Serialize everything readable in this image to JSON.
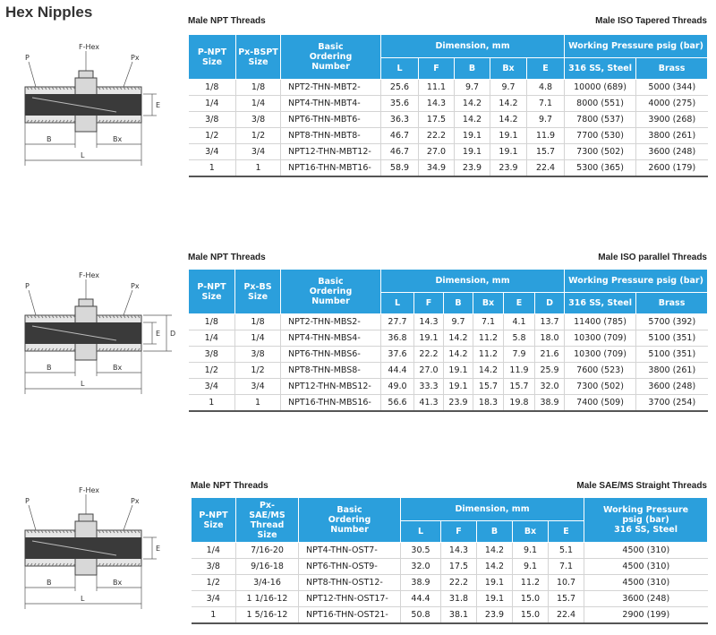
{
  "title": "Hex Nipples",
  "sections": [
    {
      "diagram_labels": [
        "P",
        "F-Hex",
        "Px",
        "E",
        "B",
        "Bx",
        "L"
      ],
      "caption_left": "Male NPT Threads",
      "caption_right": "Male ISO Tapered Threads",
      "header": {
        "col1": "P-NPT Size",
        "col2": "Px-BSPT Size",
        "col3": "Basic Ordering Number",
        "dimension": "Dimension, mm",
        "dims": [
          "L",
          "F",
          "B",
          "Bx",
          "E"
        ],
        "pressure": "Working Pressure psig (bar)",
        "press_cols": [
          "316 SS, Steel",
          "Brass"
        ]
      },
      "rows": [
        [
          "1/8",
          "1/8",
          "NPT2-THN-MBT2-",
          "25.6",
          "11.1",
          "9.7",
          "9.7",
          "4.8",
          "10000 (689)",
          "5000 (344)"
        ],
        [
          "1/4",
          "1/4",
          "NPT4-THN-MBT4-",
          "35.6",
          "14.3",
          "14.2",
          "14.2",
          "7.1",
          "8000 (551)",
          "4000 (275)"
        ],
        [
          "3/8",
          "3/8",
          "NPT6-THN-MBT6-",
          "36.3",
          "17.5",
          "14.2",
          "14.2",
          "9.7",
          "7800 (537)",
          "3900 (268)"
        ],
        [
          "1/2",
          "1/2",
          "NPT8-THN-MBT8-",
          "46.7",
          "22.2",
          "19.1",
          "19.1",
          "11.9",
          "7700 (530)",
          "3800 (261)"
        ],
        [
          "3/4",
          "3/4",
          "NPT12-THN-MBT12-",
          "46.7",
          "27.0",
          "19.1",
          "19.1",
          "15.7",
          "7300 (502)",
          "3600 (248)"
        ],
        [
          "1",
          "1",
          "NPT16-THN-MBT16-",
          "58.9",
          "34.9",
          "23.9",
          "23.9",
          "22.4",
          "5300 (365)",
          "2600 (179)"
        ]
      ]
    },
    {
      "diagram_labels": [
        "P",
        "F-Hex",
        "Px",
        "E",
        "B",
        "Bx",
        "L",
        "D"
      ],
      "caption_left": "Male NPT Threads",
      "caption_right": "Male ISO parallel Threads",
      "header": {
        "col1": "P-NPT Size",
        "col2": "Px-BS Size",
        "col3": "Basic Ordering Number",
        "dimension": "Dimension, mm",
        "dims": [
          "L",
          "F",
          "B",
          "Bx",
          "E",
          "D"
        ],
        "pressure": "Working Pressure psig (bar)",
        "press_cols": [
          "316 SS, Steel",
          "Brass"
        ]
      },
      "rows": [
        [
          "1/8",
          "1/8",
          "NPT2-THN-MBS2-",
          "27.7",
          "14.3",
          "9.7",
          "7.1",
          "4.1",
          "13.7",
          "11400 (785)",
          "5700 (392)"
        ],
        [
          "1/4",
          "1/4",
          "NPT4-THN-MBS4-",
          "36.8",
          "19.1",
          "14.2",
          "11.2",
          "5.8",
          "18.0",
          "10300 (709)",
          "5100 (351)"
        ],
        [
          "3/8",
          "3/8",
          "NPT6-THN-MBS6-",
          "37.6",
          "22.2",
          "14.2",
          "11.2",
          "7.9",
          "21.6",
          "10300 (709)",
          "5100 (351)"
        ],
        [
          "1/2",
          "1/2",
          "NPT8-THN-MBS8-",
          "44.4",
          "27.0",
          "19.1",
          "14.2",
          "11.9",
          "25.9",
          "7600 (523)",
          "3800 (261)"
        ],
        [
          "3/4",
          "3/4",
          "NPT12-THN-MBS12-",
          "49.0",
          "33.3",
          "19.1",
          "15.7",
          "15.7",
          "32.0",
          "7300 (502)",
          "3600 (248)"
        ],
        [
          "1",
          "1",
          "NPT16-THN-MBS16-",
          "56.6",
          "41.3",
          "23.9",
          "18.3",
          "19.8",
          "38.9",
          "7400 (509)",
          "3700 (254)"
        ]
      ]
    },
    {
      "diagram_labels": [
        "P",
        "F-Hex",
        "Px",
        "E",
        "B",
        "Bx",
        "L"
      ],
      "caption_left": "Male NPT Threads",
      "caption_right": "Male SAE/MS Straight Threads",
      "header": {
        "col1": "P-NPT Size",
        "col2": "Px-SAE/MS Thread Size",
        "col3": "Basic Ordering Number",
        "dimension": "Dimension, mm",
        "dims": [
          "L",
          "F",
          "B",
          "Bx",
          "E"
        ],
        "pressure_lines": [
          "Working Pressure psig (bar)",
          "316 SS, Steel"
        ]
      },
      "rows": [
        [
          "1/4",
          "7/16-20",
          "NPT4-THN-OST7-",
          "30.5",
          "14.3",
          "14.2",
          "9.1",
          "5.1",
          "4500 (310)"
        ],
        [
          "3/8",
          "9/16-18",
          "NPT6-THN-OST9-",
          "32.0",
          "17.5",
          "14.2",
          "9.1",
          "7.1",
          "4500 (310)"
        ],
        [
          "1/2",
          "3/4-16",
          "NPT8-THN-OST12-",
          "38.9",
          "22.2",
          "19.1",
          "11.2",
          "10.7",
          "4500 (310)"
        ],
        [
          "3/4",
          "1 1/16-12",
          "NPT12-THN-OST17-",
          "44.4",
          "31.8",
          "19.1",
          "15.0",
          "15.7",
          "3600 (248)"
        ],
        [
          "1",
          "1 5/16-12",
          "NPT16-THN-OST21-",
          "50.8",
          "38.1",
          "23.9",
          "15.0",
          "22.4",
          "2900 (199)"
        ]
      ]
    }
  ]
}
